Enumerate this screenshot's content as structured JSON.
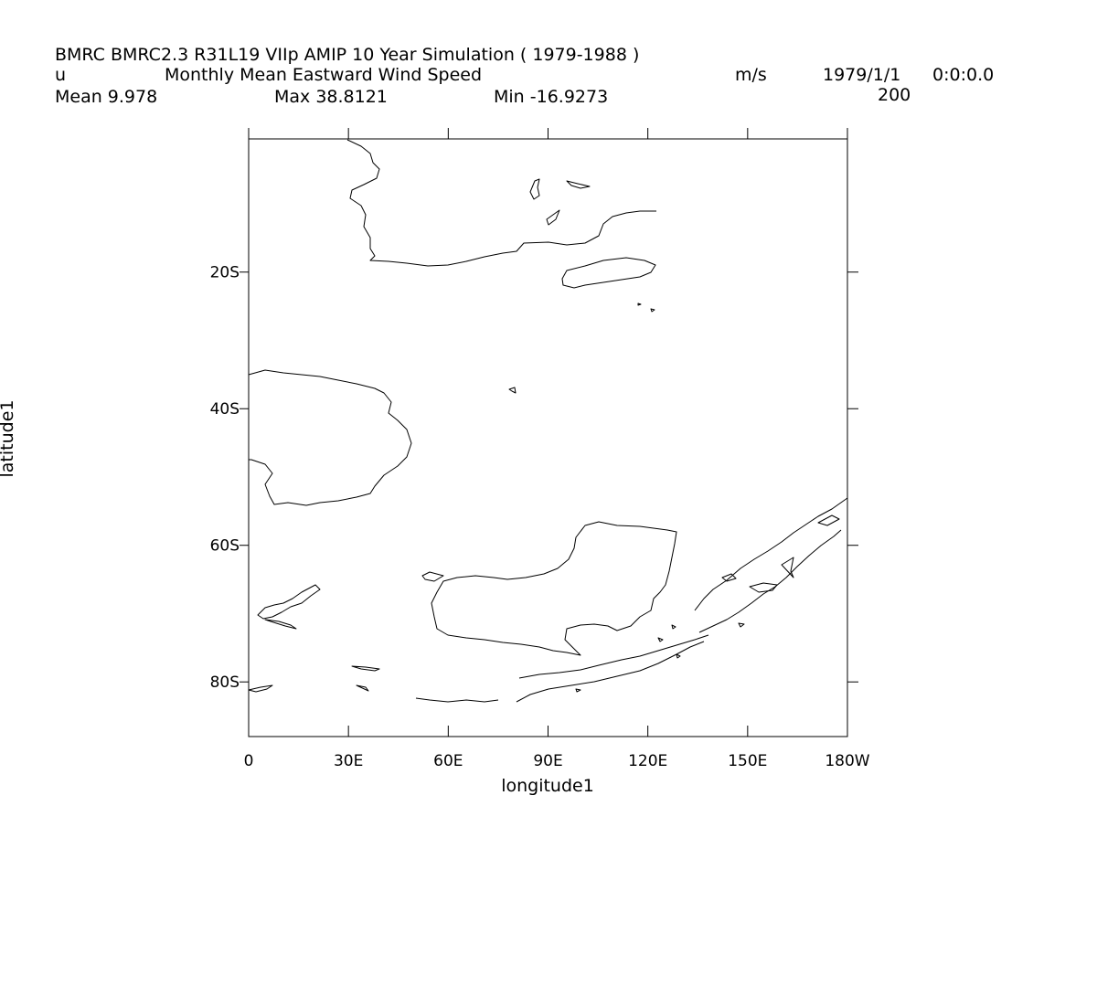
{
  "header": {
    "model_line": "BMRC BMRC2.3 R31L19 VIIp AMIP 10 Year Simulation ( 1979-1988 )",
    "variable": "u",
    "long_name": "Monthly Mean Eastward Wind Speed",
    "units": "m/s",
    "date": "1979/1/1",
    "time": "0:0:0.0",
    "level": "200",
    "mean": "Mean 9.978",
    "max": "Max 38.8121",
    "min": "Min -16.9273"
  },
  "chart_data": {
    "type": "map",
    "xlabel": "longitude1",
    "ylabel": "latitude1",
    "xlim": [
      0,
      180
    ],
    "ylim": [
      -88,
      -0.5
    ],
    "x_ticks": [
      {
        "value": 0,
        "label": "0"
      },
      {
        "value": 30,
        "label": "30E"
      },
      {
        "value": 60,
        "label": "60E"
      },
      {
        "value": 90,
        "label": "90E"
      },
      {
        "value": 120,
        "label": "120E"
      },
      {
        "value": 150,
        "label": "150E"
      },
      {
        "value": 180,
        "label": "180W"
      }
    ],
    "y_ticks": [
      {
        "value": -20,
        "label": "20S"
      },
      {
        "value": -40,
        "label": "40S"
      },
      {
        "value": -60,
        "label": "60S"
      },
      {
        "value": -80,
        "label": "80S"
      }
    ]
  }
}
